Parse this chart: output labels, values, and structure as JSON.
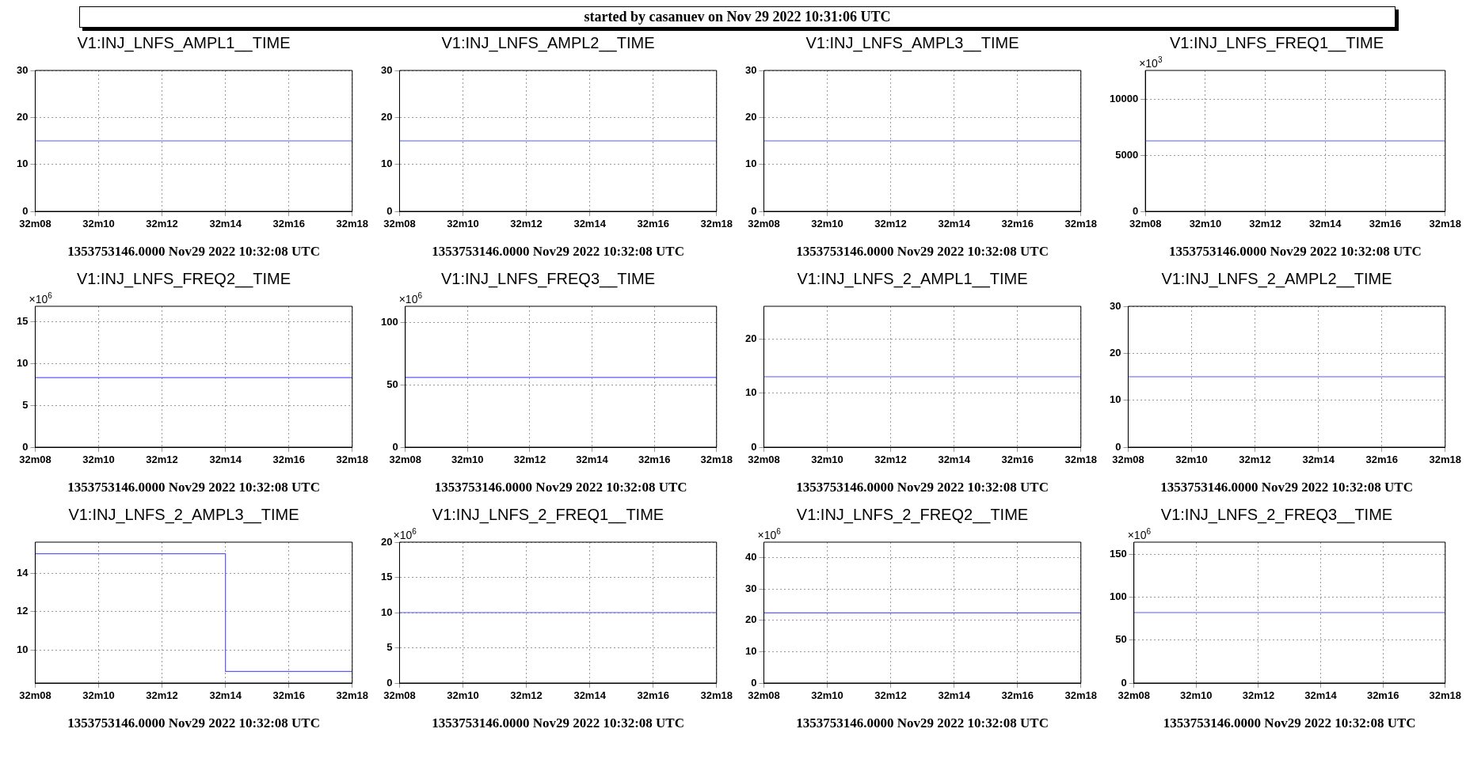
{
  "chart_data": [
    {
      "type": "line",
      "title": "V1:INJ_LNFS_AMPL1__TIME",
      "xlabel": "1353753146.0000 Nov29 2022 10:32:08 UTC",
      "annotations": [
        "started by casanuev on Nov 29 2022 10:31:06 UTC"
      ],
      "categories": [
        "32m08",
        null,
        "32m10",
        null,
        "32m12",
        null,
        "32m14",
        null,
        "32m16",
        null,
        "32m18"
      ],
      "values": [
        15,
        15,
        15,
        15,
        15,
        15,
        15,
        15,
        15,
        15,
        15
      ],
      "color": "#5b5bff",
      "ylim": [
        0,
        30
      ],
      "yticks": [
        0,
        10,
        20,
        30
      ],
      "grid": true,
      "marker": "none"
    },
    {
      "type": "line",
      "title": "V1:INJ_LNFS_AMPL2__TIME",
      "xlabel": "1353753146.0000 Nov29 2022 10:32:08 UTC",
      "categories": [
        "32m08",
        null,
        "32m10",
        null,
        "32m12",
        null,
        "32m14",
        null,
        "32m16",
        null,
        "32m18"
      ],
      "values": [
        15,
        15,
        15,
        15,
        15,
        15,
        15,
        15,
        15,
        15,
        15
      ],
      "color": "#5b5bff",
      "ylim": [
        0,
        30
      ],
      "yticks": [
        0,
        10,
        20,
        30
      ],
      "grid": true,
      "marker": "none"
    },
    {
      "type": "line",
      "title": "V1:INJ_LNFS_AMPL3__TIME",
      "xlabel": "1353753146.0000 Nov29 2022 10:32:08 UTC",
      "categories": [
        "32m08",
        null,
        "32m10",
        null,
        "32m12",
        null,
        "32m14",
        null,
        "32m16",
        null,
        "32m18"
      ],
      "values": [
        15,
        15,
        15,
        15,
        15,
        15,
        15,
        15,
        15,
        15,
        15
      ],
      "color": "#5b5bff",
      "ylim": [
        0,
        30
      ],
      "yticks": [
        0,
        10,
        20,
        30
      ],
      "grid": true,
      "marker": "none"
    },
    {
      "type": "line",
      "title": "V1:INJ_LNFS_FREQ1__TIME",
      "xlabel": "1353753146.0000 Nov29 2022 10:32:08 UTC",
      "ylabel": "×10$^{3}$",
      "categories": [
        "32m08",
        null,
        "32m10",
        null,
        "32m12",
        null,
        "32m14",
        null,
        "32m16",
        null,
        "32m18"
      ],
      "values": [
        6300,
        6300,
        6300,
        6300,
        6300,
        6300,
        6300,
        6300,
        6300,
        6300,
        6300
      ],
      "color": "#5b5bff",
      "ylim": [
        0,
        12600
      ],
      "yticks": [
        0,
        5000,
        10000
      ],
      "grid": true,
      "marker": "none"
    },
    {
      "type": "line",
      "title": "V1:INJ_LNFS_FREQ2__TIME",
      "xlabel": "1353753146.0000 Nov29 2022 10:32:08 UTC",
      "ylabel": "×10$^{6}$",
      "categories": [
        "32m08",
        null,
        "32m10",
        null,
        "32m12",
        null,
        "32m14",
        null,
        "32m16",
        null,
        "32m18"
      ],
      "values": [
        8.3,
        8.3,
        8.3,
        8.3,
        8.3,
        8.3,
        8.3,
        8.3,
        8.3,
        8.3,
        8.3
      ],
      "color": "#5b5bff",
      "ylim": [
        0,
        16.8
      ],
      "yticks": [
        0,
        5,
        10,
        15
      ],
      "grid": true,
      "marker": "none"
    },
    {
      "type": "line",
      "title": "V1:INJ_LNFS_FREQ3__TIME",
      "xlabel": "1353753146.0000 Nov29 2022 10:32:08 UTC",
      "ylabel": "×10$^{6}$",
      "categories": [
        "32m08",
        null,
        "32m10",
        null,
        "32m12",
        null,
        "32m14",
        null,
        "32m16",
        null,
        "32m18"
      ],
      "values": [
        56,
        56,
        56,
        56,
        56,
        56,
        56,
        56,
        56,
        56,
        56
      ],
      "color": "#5b5bff",
      "ylim": [
        0,
        113
      ],
      "yticks": [
        0,
        50,
        100
      ],
      "grid": true,
      "marker": "none"
    },
    {
      "type": "line",
      "title": "V1:INJ_LNFS_2_AMPL1__TIME",
      "xlabel": "1353753146.0000 Nov29 2022 10:32:08 UTC",
      "categories": [
        "32m08",
        null,
        "32m10",
        null,
        "32m12",
        null,
        "32m14",
        null,
        "32m16",
        null,
        "32m18"
      ],
      "values": [
        13,
        13,
        13,
        13,
        13,
        13,
        13,
        13,
        13,
        13,
        13
      ],
      "color": "#5b5bff",
      "ylim": [
        0,
        26
      ],
      "yticks": [
        0,
        10,
        20
      ],
      "grid": true,
      "marker": "none"
    },
    {
      "type": "line",
      "title": "V1:INJ_LNFS_2_AMPL2__TIME",
      "xlabel": "1353753146.0000 Nov29 2022 10:32:08 UTC",
      "categories": [
        "32m08",
        null,
        "32m10",
        null,
        "32m12",
        null,
        "32m14",
        null,
        "32m16",
        null,
        "32m18"
      ],
      "values": [
        15,
        15,
        15,
        15,
        15,
        15,
        15,
        15,
        15,
        15,
        15
      ],
      "color": "#5b5bff",
      "ylim": [
        0,
        30
      ],
      "yticks": [
        0,
        10,
        20,
        30
      ],
      "grid": true,
      "marker": "none"
    },
    {
      "type": "step",
      "title": "V1:INJ_LNFS_2_AMPL3__TIME",
      "xlabel": "1353753146.0000 Nov29 2022 10:32:08 UTC",
      "categories": [
        "32m08",
        null,
        "32m10",
        null,
        "32m12",
        null,
        "32m14",
        null,
        "32m16",
        null,
        "32m18"
      ],
      "values": [
        15,
        15,
        15,
        15,
        15,
        15,
        8.9,
        8.9,
        8.9,
        8.9,
        8.9
      ],
      "color": "#5b5bff",
      "ylim": [
        8.3,
        15.6
      ],
      "yticks": [
        10,
        12,
        14
      ],
      "grid": true,
      "marker": "none"
    },
    {
      "type": "line",
      "title": "V1:INJ_LNFS_2_FREQ1__TIME",
      "xlabel": "1353753146.0000 Nov29 2022 10:32:08 UTC",
      "ylabel": "×10$^{6}$",
      "categories": [
        "32m08",
        null,
        "32m10",
        null,
        "32m12",
        null,
        "32m14",
        null,
        "32m16",
        null,
        "32m18"
      ],
      "values": [
        10,
        10,
        10,
        10,
        10,
        10,
        10,
        10,
        10,
        10,
        10
      ],
      "color": "#5b5bff",
      "ylim": [
        0,
        20
      ],
      "yticks": [
        0,
        5,
        10,
        15,
        20
      ],
      "grid": true,
      "marker": "none"
    },
    {
      "type": "line",
      "title": "V1:INJ_LNFS_2_FREQ2__TIME",
      "xlabel": "1353753146.0000 Nov29 2022 10:32:08 UTC",
      "ylabel": "×10$^{6}$",
      "categories": [
        "32m08",
        null,
        "32m10",
        null,
        "32m12",
        null,
        "32m14",
        null,
        "32m16",
        null,
        "32m18"
      ],
      "values": [
        22.4,
        22.4,
        22.4,
        22.4,
        22.4,
        22.4,
        22.4,
        22.4,
        22.4,
        22.4,
        22.4
      ],
      "color": "#5b5bff",
      "ylim": [
        0,
        45
      ],
      "yticks": [
        0,
        10,
        20,
        30,
        40
      ],
      "grid": true,
      "marker": "none"
    },
    {
      "type": "line",
      "title": "V1:INJ_LNFS_2_FREQ3__TIME",
      "xlabel": "1353753146.0000 Nov29 2022 10:32:08 UTC",
      "ylabel": "×10$^{6}$",
      "categories": [
        "32m08",
        null,
        "32m10",
        null,
        "32m12",
        null,
        "32m14",
        null,
        "32m16",
        null,
        "32m18"
      ],
      "values": [
        82,
        82,
        82,
        82,
        82,
        82,
        82,
        82,
        82,
        82,
        82
      ],
      "color": "#5b5bff",
      "ylim": [
        0,
        164
      ],
      "yticks": [
        0,
        50,
        100,
        150
      ],
      "grid": true,
      "marker": "none"
    }
  ]
}
